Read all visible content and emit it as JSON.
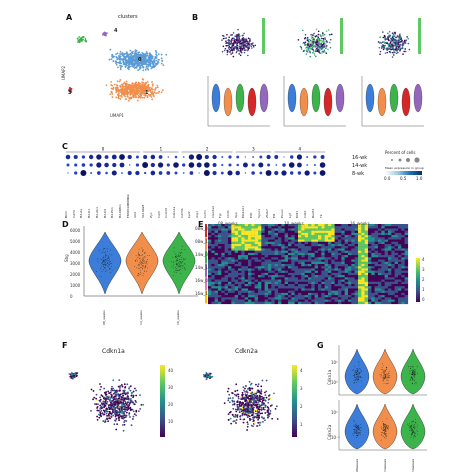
{
  "panels": {
    "A": {
      "letter": "A",
      "title": "clusters",
      "xlabel": "UMAP1",
      "ylabel": "UMAP2",
      "cluster_labels": [
        "0",
        "1",
        "2",
        "3",
        "4"
      ],
      "colors": {
        "c0": "#5b9bd5",
        "c1": "#f28e4b",
        "c2": "#3cb44b",
        "c3": "#d62728",
        "c4": "#9467bd"
      }
    },
    "B": {
      "letter": "B"
    },
    "C": {
      "letter": "C",
      "groups": [
        "0",
        "1",
        "2",
        "3",
        "4"
      ],
      "rows": [
        "16-wk",
        "14-wk",
        "8-wk"
      ],
      "genes": [
        "B2m",
        "Cd74",
        "H2-Aa",
        "H2-K1",
        "H2-Ab1",
        "H2-D1",
        "H2-Eb1",
        "H2-DMb1",
        "F830016B08Rik",
        "Ubd",
        "Sb100a8",
        "Zyx",
        "Cst3",
        "Cxcl10",
        "Cdkn1a",
        "Cd74b",
        "Lyz2",
        "Arg1",
        "Csfr1",
        "Clec4a2",
        "Fgr",
        "Chil3",
        "Vpp",
        "Mb21d1",
        "Pl3l",
        "Sypc1",
        "Zbtb7",
        "Pl4",
        "Pcca1",
        "Lgf",
        "Mdl1",
        "Cdk1",
        "Rad51",
        "Tk"
      ],
      "legend": {
        "pct_title": "Percent of cells",
        "mean_title": "Mean expression in group",
        "scale": [
          "0.0",
          "0.5",
          "1.0"
        ]
      }
    },
    "D": {
      "letter": "D",
      "ylabel": "Sbg",
      "yticks": [
        "6000",
        "5000",
        "4000",
        "3000",
        "2000",
        "1000",
        "0"
      ],
      "groups": [
        "08_weeks",
        "14_weeks",
        "16_weeks"
      ]
    },
    "E": {
      "letter": "E",
      "col_groups": [
        "08_weeks",
        "14_weeks",
        "16_weeks"
      ],
      "row_labels": [
        "08w_0",
        "08w_1",
        "14w_0",
        "14w_1",
        "16w_0",
        "16w_1"
      ],
      "colorbar": [
        "4",
        "3",
        "2",
        "1",
        "0"
      ]
    },
    "F": {
      "letter": "F",
      "left_title": "Cdkn1a",
      "right_title": "Cdkn2a",
      "left_scale": [
        "40",
        "30",
        "20",
        "10"
      ],
      "right_scale": [
        "4",
        "3",
        "2",
        "1"
      ]
    },
    "G": {
      "letter": "G",
      "top_label": "Cdkn1a",
      "bottom_label": "Cdkn2a",
      "groups": [
        "08weeks",
        "14weeks",
        "16weeks"
      ],
      "yticks_top": [
        "10¹",
        "10⁰"
      ],
      "yticks_bottom": [
        "10¹",
        "10⁻¹"
      ]
    }
  },
  "chart_data": [
    {
      "type": "scatter",
      "title": "clusters",
      "xlabel": "UMAP1",
      "ylabel": "UMAP2",
      "series": [
        {
          "name": "0"
        },
        {
          "name": "1"
        },
        {
          "name": "2"
        },
        {
          "name": "3"
        },
        {
          "name": "4"
        }
      ]
    },
    {
      "type": "violin",
      "title": "",
      "ylabel": "Sbg",
      "categories": [
        "08_weeks",
        "14_weeks",
        "16_weeks"
      ],
      "ylim": [
        0,
        6000
      ]
    }
  ]
}
